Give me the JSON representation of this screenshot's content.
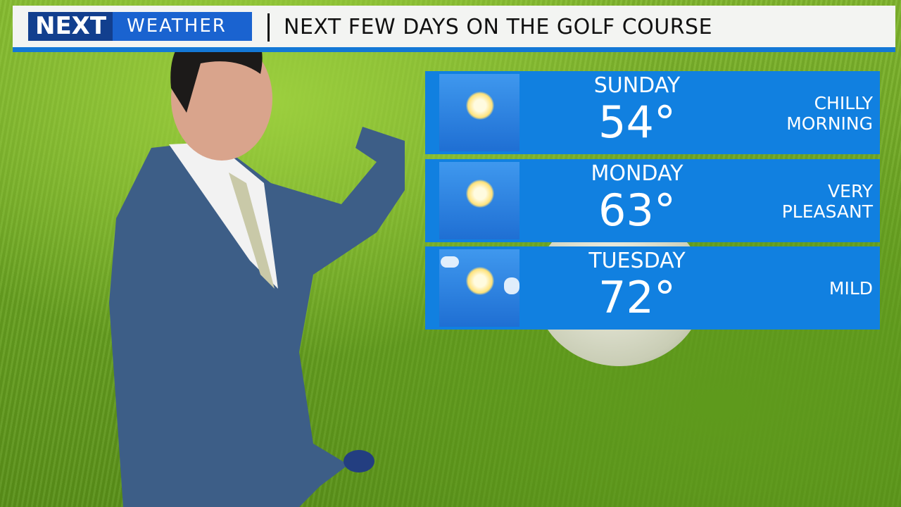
{
  "header": {
    "logo_text": "NEXT WEATHER",
    "title": "NEXT FEW DAYS ON THE GOLF COURSE"
  },
  "forecast": [
    {
      "day": "SUNDAY",
      "temp": "54°",
      "note_lines": [
        "CHILLY",
        "MORNING"
      ],
      "icon": "sunny-icon"
    },
    {
      "day": "MONDAY",
      "temp": "63°",
      "note_lines": [
        "VERY",
        "PLEASANT"
      ],
      "icon": "sunny-icon"
    },
    {
      "day": "TUESDAY",
      "temp": "72°",
      "note_lines": [
        "MILD"
      ],
      "icon": "mostly-sunny-icon"
    }
  ],
  "colors": {
    "panel": "#1180e0",
    "banner_stripe": "#1478d6",
    "logo_blue": "#1a63d0"
  }
}
